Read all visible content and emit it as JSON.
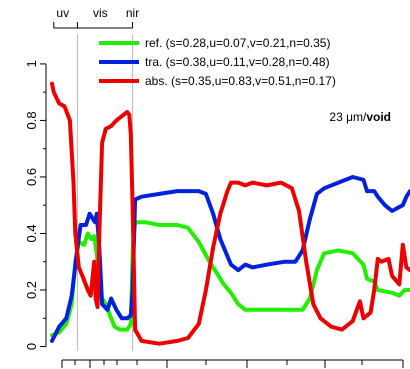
{
  "chart_data": {
    "type": "line",
    "title": "",
    "xlabel": "",
    "ylabel": "",
    "x_range": [
      0,
      1
    ],
    "ylim": [
      -0.03,
      1.12
    ],
    "y_ticks": [
      {
        "value": 0,
        "label": "0"
      },
      {
        "value": 0.2,
        "label": "0.2"
      },
      {
        "value": 0.4,
        "label": "0.4"
      },
      {
        "value": 0.6,
        "label": "0.6"
      },
      {
        "value": 0.8,
        "label": "0.8"
      },
      {
        "value": 1,
        "label": "1"
      }
    ],
    "band_labels": [
      {
        "label": "uv",
        "x": 0.03
      },
      {
        "label": "vis",
        "x": 0.135
      },
      {
        "label": "nir",
        "x": 0.225
      }
    ],
    "band_boundaries": [
      0.071,
      0.225
    ],
    "legend": {
      "placement": "top-right",
      "entries": [
        {
          "series": "ref",
          "text": "ref.  (s=0.28,u=0.07,v=0.21,n=0.35)"
        },
        {
          "series": "tra",
          "text": "tra.  (s=0.38,u=0.11,v=0.28,n=0.48)"
        },
        {
          "series": "abs",
          "text": "abs.  (s=0.35,u=0.83,v=0.51,n=0.17)"
        }
      ]
    },
    "annotation": {
      "prefix": "23 ",
      "unit": "μm/",
      "bold": "void"
    },
    "series": [
      {
        "key": "ref",
        "color": "#22ee00",
        "points": [
          [
            0,
            0.04
          ],
          [
            0.02,
            0.05
          ],
          [
            0.04,
            0.08
          ],
          [
            0.055,
            0.15
          ],
          [
            0.065,
            0.3
          ],
          [
            0.075,
            0.37
          ],
          [
            0.09,
            0.36
          ],
          [
            0.1,
            0.4
          ],
          [
            0.11,
            0.38
          ],
          [
            0.118,
            0.39
          ],
          [
            0.125,
            0.33
          ],
          [
            0.135,
            0.18
          ],
          [
            0.15,
            0.15
          ],
          [
            0.165,
            0.1
          ],
          [
            0.175,
            0.07
          ],
          [
            0.19,
            0.06
          ],
          [
            0.21,
            0.06
          ],
          [
            0.22,
            0.08
          ],
          [
            0.226,
            0.35
          ],
          [
            0.232,
            0.44
          ],
          [
            0.26,
            0.44
          ],
          [
            0.3,
            0.43
          ],
          [
            0.35,
            0.43
          ],
          [
            0.38,
            0.42
          ],
          [
            0.41,
            0.37
          ],
          [
            0.44,
            0.3
          ],
          [
            0.46,
            0.26
          ],
          [
            0.48,
            0.22
          ],
          [
            0.5,
            0.19
          ],
          [
            0.52,
            0.15
          ],
          [
            0.54,
            0.13
          ],
          [
            0.58,
            0.13
          ],
          [
            0.62,
            0.13
          ],
          [
            0.66,
            0.13
          ],
          [
            0.7,
            0.13
          ],
          [
            0.72,
            0.17
          ],
          [
            0.74,
            0.27
          ],
          [
            0.76,
            0.33
          ],
          [
            0.8,
            0.34
          ],
          [
            0.84,
            0.33
          ],
          [
            0.87,
            0.29
          ],
          [
            0.88,
            0.24
          ],
          [
            0.9,
            0.23
          ],
          [
            0.91,
            0.2
          ],
          [
            0.95,
            0.19
          ],
          [
            0.97,
            0.18
          ],
          [
            0.985,
            0.2
          ],
          [
            1,
            0.2
          ]
        ]
      },
      {
        "key": "tra",
        "color": "#0022dd",
        "points": [
          [
            0,
            0.02
          ],
          [
            0.02,
            0.07
          ],
          [
            0.04,
            0.1
          ],
          [
            0.055,
            0.18
          ],
          [
            0.07,
            0.34
          ],
          [
            0.08,
            0.43
          ],
          [
            0.095,
            0.43
          ],
          [
            0.105,
            0.47
          ],
          [
            0.12,
            0.44
          ],
          [
            0.125,
            0.47
          ],
          [
            0.132,
            0.35
          ],
          [
            0.14,
            0.15
          ],
          [
            0.155,
            0.13
          ],
          [
            0.165,
            0.17
          ],
          [
            0.18,
            0.13
          ],
          [
            0.195,
            0.1
          ],
          [
            0.21,
            0.1
          ],
          [
            0.22,
            0.11
          ],
          [
            0.225,
            0.2
          ],
          [
            0.232,
            0.52
          ],
          [
            0.25,
            0.53
          ],
          [
            0.3,
            0.54
          ],
          [
            0.35,
            0.55
          ],
          [
            0.38,
            0.55
          ],
          [
            0.41,
            0.55
          ],
          [
            0.43,
            0.54
          ],
          [
            0.45,
            0.47
          ],
          [
            0.47,
            0.38
          ],
          [
            0.49,
            0.32
          ],
          [
            0.5,
            0.29
          ],
          [
            0.52,
            0.27
          ],
          [
            0.54,
            0.29
          ],
          [
            0.56,
            0.28
          ],
          [
            0.6,
            0.29
          ],
          [
            0.65,
            0.3
          ],
          [
            0.68,
            0.3
          ],
          [
            0.7,
            0.34
          ],
          [
            0.72,
            0.45
          ],
          [
            0.74,
            0.54
          ],
          [
            0.76,
            0.56
          ],
          [
            0.8,
            0.58
          ],
          [
            0.84,
            0.6
          ],
          [
            0.87,
            0.59
          ],
          [
            0.88,
            0.55
          ],
          [
            0.9,
            0.55
          ],
          [
            0.91,
            0.53
          ],
          [
            0.93,
            0.5
          ],
          [
            0.95,
            0.48
          ],
          [
            0.98,
            0.5
          ],
          [
            0.99,
            0.53
          ],
          [
            1,
            0.55
          ]
        ]
      },
      {
        "key": "abs",
        "color": "#ee0000",
        "points": [
          [
            0,
            0.93
          ],
          [
            0.005,
            0.9
          ],
          [
            0.02,
            0.86
          ],
          [
            0.035,
            0.85
          ],
          [
            0.05,
            0.8
          ],
          [
            0.06,
            0.58
          ],
          [
            0.065,
            0.4
          ],
          [
            0.075,
            0.28
          ],
          [
            0.085,
            0.25
          ],
          [
            0.1,
            0.2
          ],
          [
            0.108,
            0.18
          ],
          [
            0.118,
            0.3
          ],
          [
            0.122,
            0.17
          ],
          [
            0.127,
            0.14
          ],
          [
            0.132,
            0.4
          ],
          [
            0.14,
            0.72
          ],
          [
            0.15,
            0.77
          ],
          [
            0.165,
            0.78
          ],
          [
            0.18,
            0.8
          ],
          [
            0.2,
            0.82
          ],
          [
            0.21,
            0.83
          ],
          [
            0.216,
            0.82
          ],
          [
            0.22,
            0.75
          ],
          [
            0.225,
            0.5
          ],
          [
            0.232,
            0.06
          ],
          [
            0.25,
            0.02
          ],
          [
            0.3,
            0.01
          ],
          [
            0.35,
            0.02
          ],
          [
            0.38,
            0.03
          ],
          [
            0.41,
            0.08
          ],
          [
            0.43,
            0.2
          ],
          [
            0.45,
            0.35
          ],
          [
            0.47,
            0.47
          ],
          [
            0.49,
            0.55
          ],
          [
            0.5,
            0.58
          ],
          [
            0.52,
            0.58
          ],
          [
            0.54,
            0.57
          ],
          [
            0.56,
            0.58
          ],
          [
            0.6,
            0.57
          ],
          [
            0.64,
            0.58
          ],
          [
            0.67,
            0.56
          ],
          [
            0.69,
            0.48
          ],
          [
            0.71,
            0.3
          ],
          [
            0.73,
            0.15
          ],
          [
            0.75,
            0.1
          ],
          [
            0.78,
            0.07
          ],
          [
            0.81,
            0.06
          ],
          [
            0.84,
            0.09
          ],
          [
            0.86,
            0.16
          ],
          [
            0.87,
            0.1
          ],
          [
            0.89,
            0.12
          ],
          [
            0.9,
            0.2
          ],
          [
            0.91,
            0.31
          ],
          [
            0.92,
            0.3
          ],
          [
            0.94,
            0.31
          ],
          [
            0.95,
            0.25
          ],
          [
            0.97,
            0.22
          ],
          [
            0.98,
            0.36
          ],
          [
            0.99,
            0.28
          ],
          [
            1,
            0.27
          ]
        ]
      }
    ]
  }
}
